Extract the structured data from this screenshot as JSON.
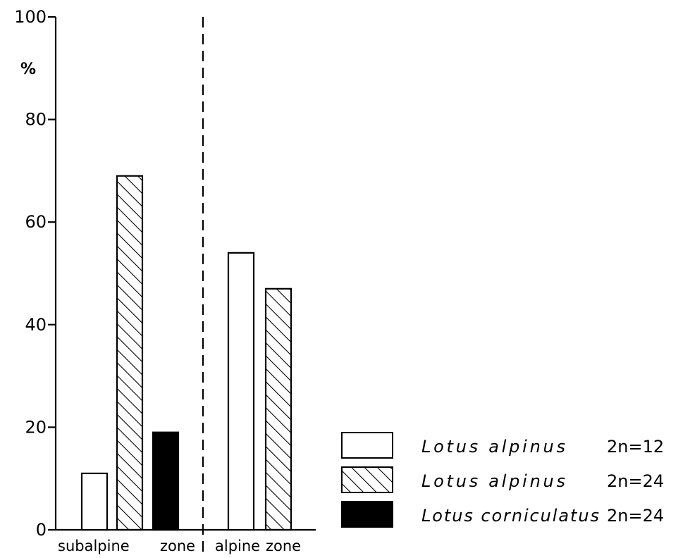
{
  "chart_data": {
    "type": "bar",
    "ylabel": "%",
    "ylim": [
      0,
      100
    ],
    "yticks": [
      "0",
      "20",
      "40",
      "60",
      "80",
      "100"
    ],
    "groups": [
      {
        "label_left": "subalpine",
        "label_right": "zone"
      },
      {
        "label_left": "alpine",
        "label_right": "zone"
      }
    ],
    "series": [
      {
        "name": "Lotus alpinus",
        "ploidy": "2n=12",
        "fill": "open",
        "values": [
          11,
          54
        ]
      },
      {
        "name": "Lotus alpinus",
        "ploidy": "2n=24",
        "fill": "hatched",
        "values": [
          69,
          47
        ]
      },
      {
        "name": "Lotus corniculatus",
        "ploidy": "2n=24",
        "fill": "solid",
        "values": [
          19,
          null
        ]
      }
    ],
    "divider": "dashed vertical line between zones",
    "legend_position": "bottom-right",
    "grid": false
  },
  "colors": {
    "ink": "#000000",
    "background": "#ffffff"
  }
}
